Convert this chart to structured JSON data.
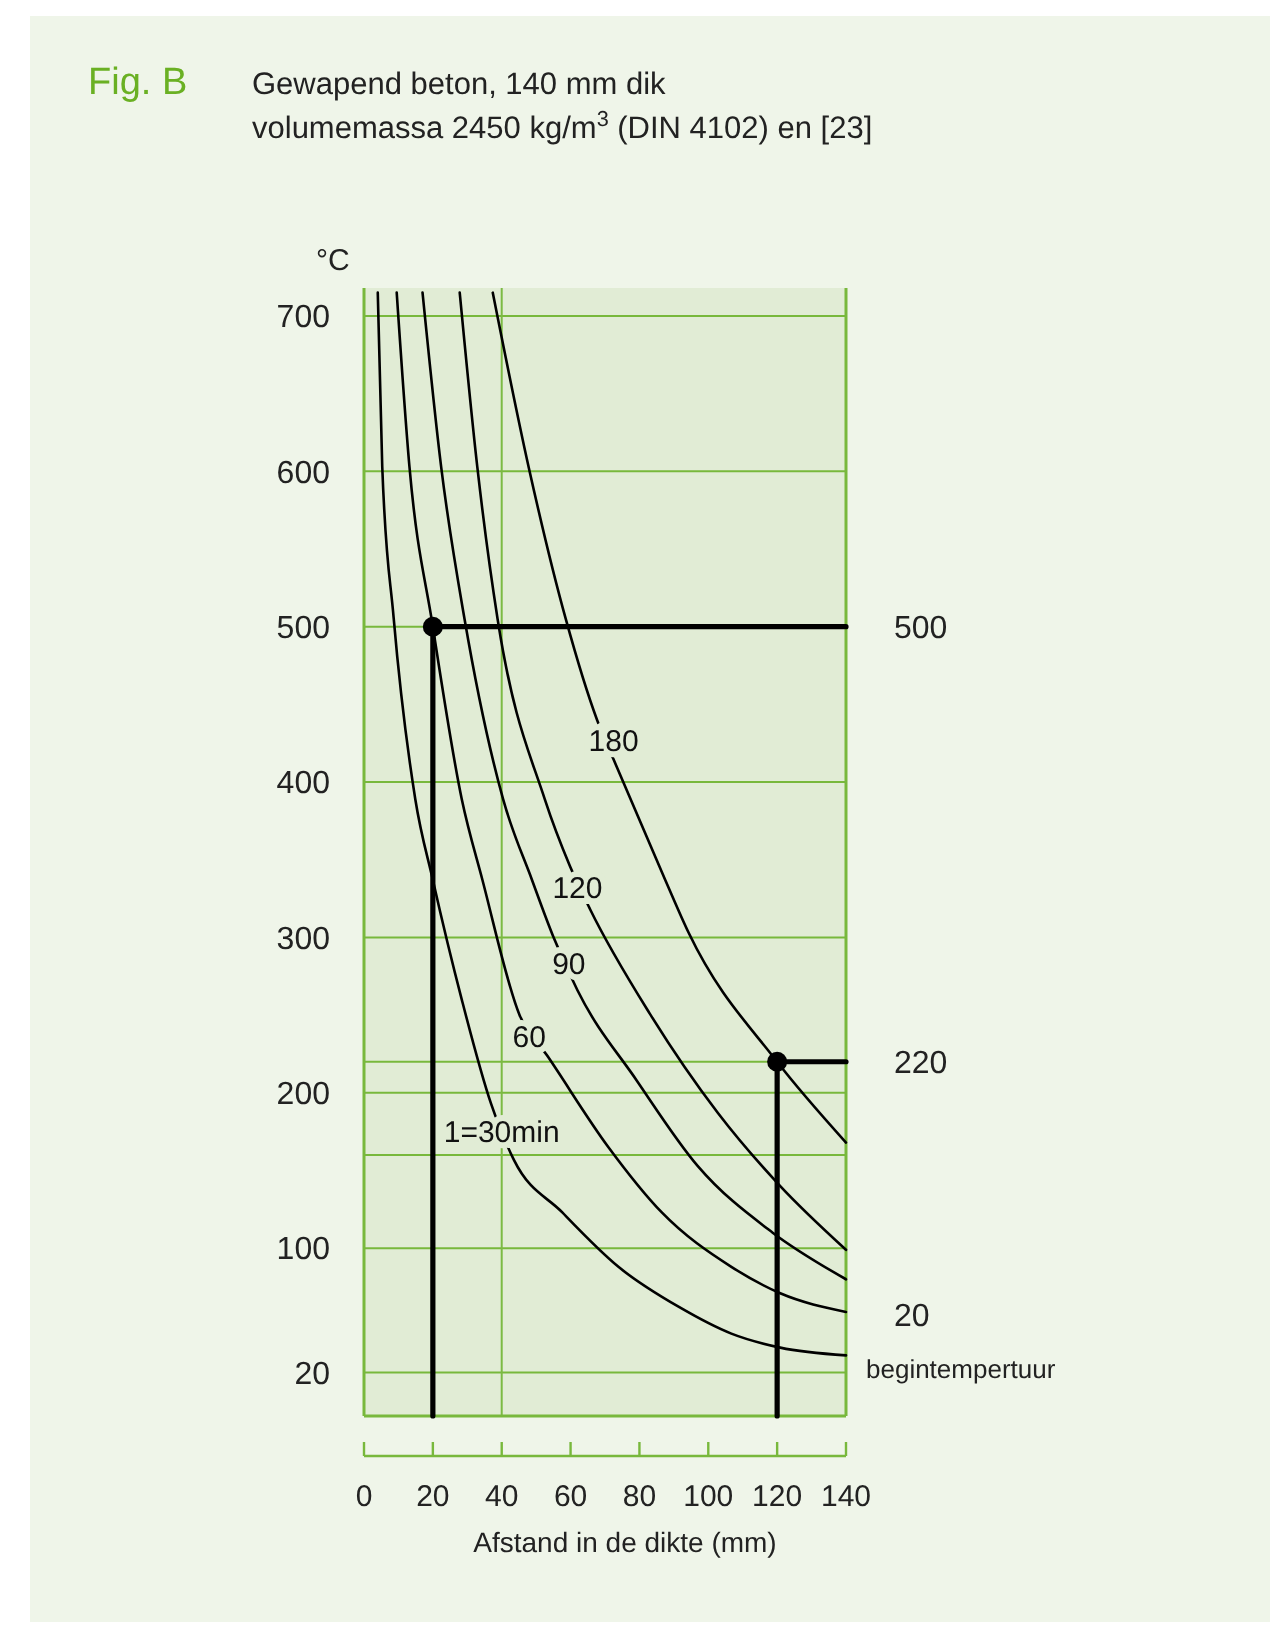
{
  "chart_data": {
    "type": "line",
    "title": "Fig. B",
    "subtitle": "Gewapend beton, 140 mm dik\nvolumemassa 2450 kg/m$^{3}$ (DIN 4102) en [23]",
    "xlabel": "Afstand in de dikte (mm)",
    "ylabel": "°C",
    "xlim": [
      0,
      140
    ],
    "xticks": [
      0,
      20,
      40,
      60,
      80,
      100,
      120,
      140
    ],
    "ylim": [
      -8,
      718
    ],
    "yticks": [
      20,
      100,
      {
        "value": 160,
        "label": null
      },
      200,
      {
        "value": 220,
        "label": null
      },
      300,
      400,
      500,
      600,
      700
    ],
    "grid": "y",
    "ref_lines": [
      {
        "axis": "x",
        "value": 40,
        "color": "#7cba44"
      }
    ],
    "series": [
      {
        "name": "1=30min",
        "color": "#000000",
        "x": [
          4,
          5.3,
          8.6,
          14.9,
          20,
          28.4,
          36.9,
          40,
          43.5,
          57.6,
          73.9,
          91.6,
          106.7,
          120.9,
          140
        ],
        "values": [
          715,
          603,
          506,
          389,
          337,
          260,
          193,
          null,
          157,
          123,
          88,
          62,
          45,
          36,
          31
        ]
      },
      {
        "name": "60",
        "color": "#000000",
        "x": [
          9.5,
          13.2,
          20,
          28.4,
          34.4,
          45.2,
          48,
          53.5,
          71,
          86.5,
          106.7,
          120.9,
          140
        ],
        "values": [
          715,
          603,
          500,
          389,
          337,
          250,
          null,
          223,
          165,
          123,
          88,
          71,
          59
        ]
      },
      {
        "name": "90",
        "color": "#000000",
        "x": [
          17,
          22.4,
          29.2,
          40.4,
          48.8,
          54.9,
          59.5,
          62,
          79.2,
          96.9,
          118.7,
          140
        ],
        "values": [
          715,
          603,
          505,
          389,
          337,
          301,
          null,
          266,
          208,
          153,
          110,
          80
        ]
      },
      {
        "name": "120",
        "color": "#000000",
        "x": [
          27.8,
          32.9,
          38.8,
          52.5,
          59.8,
          62,
          65.7,
          83,
          102.8,
          120.9,
          140
        ],
        "values": [
          715,
          603,
          505,
          389,
          346,
          null,
          318,
          251,
          187,
          140,
          99
        ]
      },
      {
        "name": "180",
        "color": "#000000",
        "x": [
          37.4,
          47.8,
          58.6,
          67.7,
          72.5,
          72.6,
          87.5,
          94.3,
          120,
          140
        ],
        "values": [
          715,
          603,
          505,
          440,
          null,
          414,
          337,
          303,
          220,
          168
        ]
      },
      {
        "name": "500",
        "color": "#000000",
        "x": [
          20,
          20,
          140
        ],
        "values": [
          -8,
          500,
          500
        ]
      },
      {
        "name": "220",
        "color": "#000000",
        "x": [
          120,
          120,
          140
        ],
        "values": [
          -8,
          220,
          220
        ]
      },
      {
        "type": "scatter",
        "marker": "circle",
        "color": "#000000",
        "x": [
          20,
          120
        ],
        "values": [
          500,
          220
        ]
      }
    ],
    "annotations": [
      "20",
      "begintempertuur"
    ]
  }
}
